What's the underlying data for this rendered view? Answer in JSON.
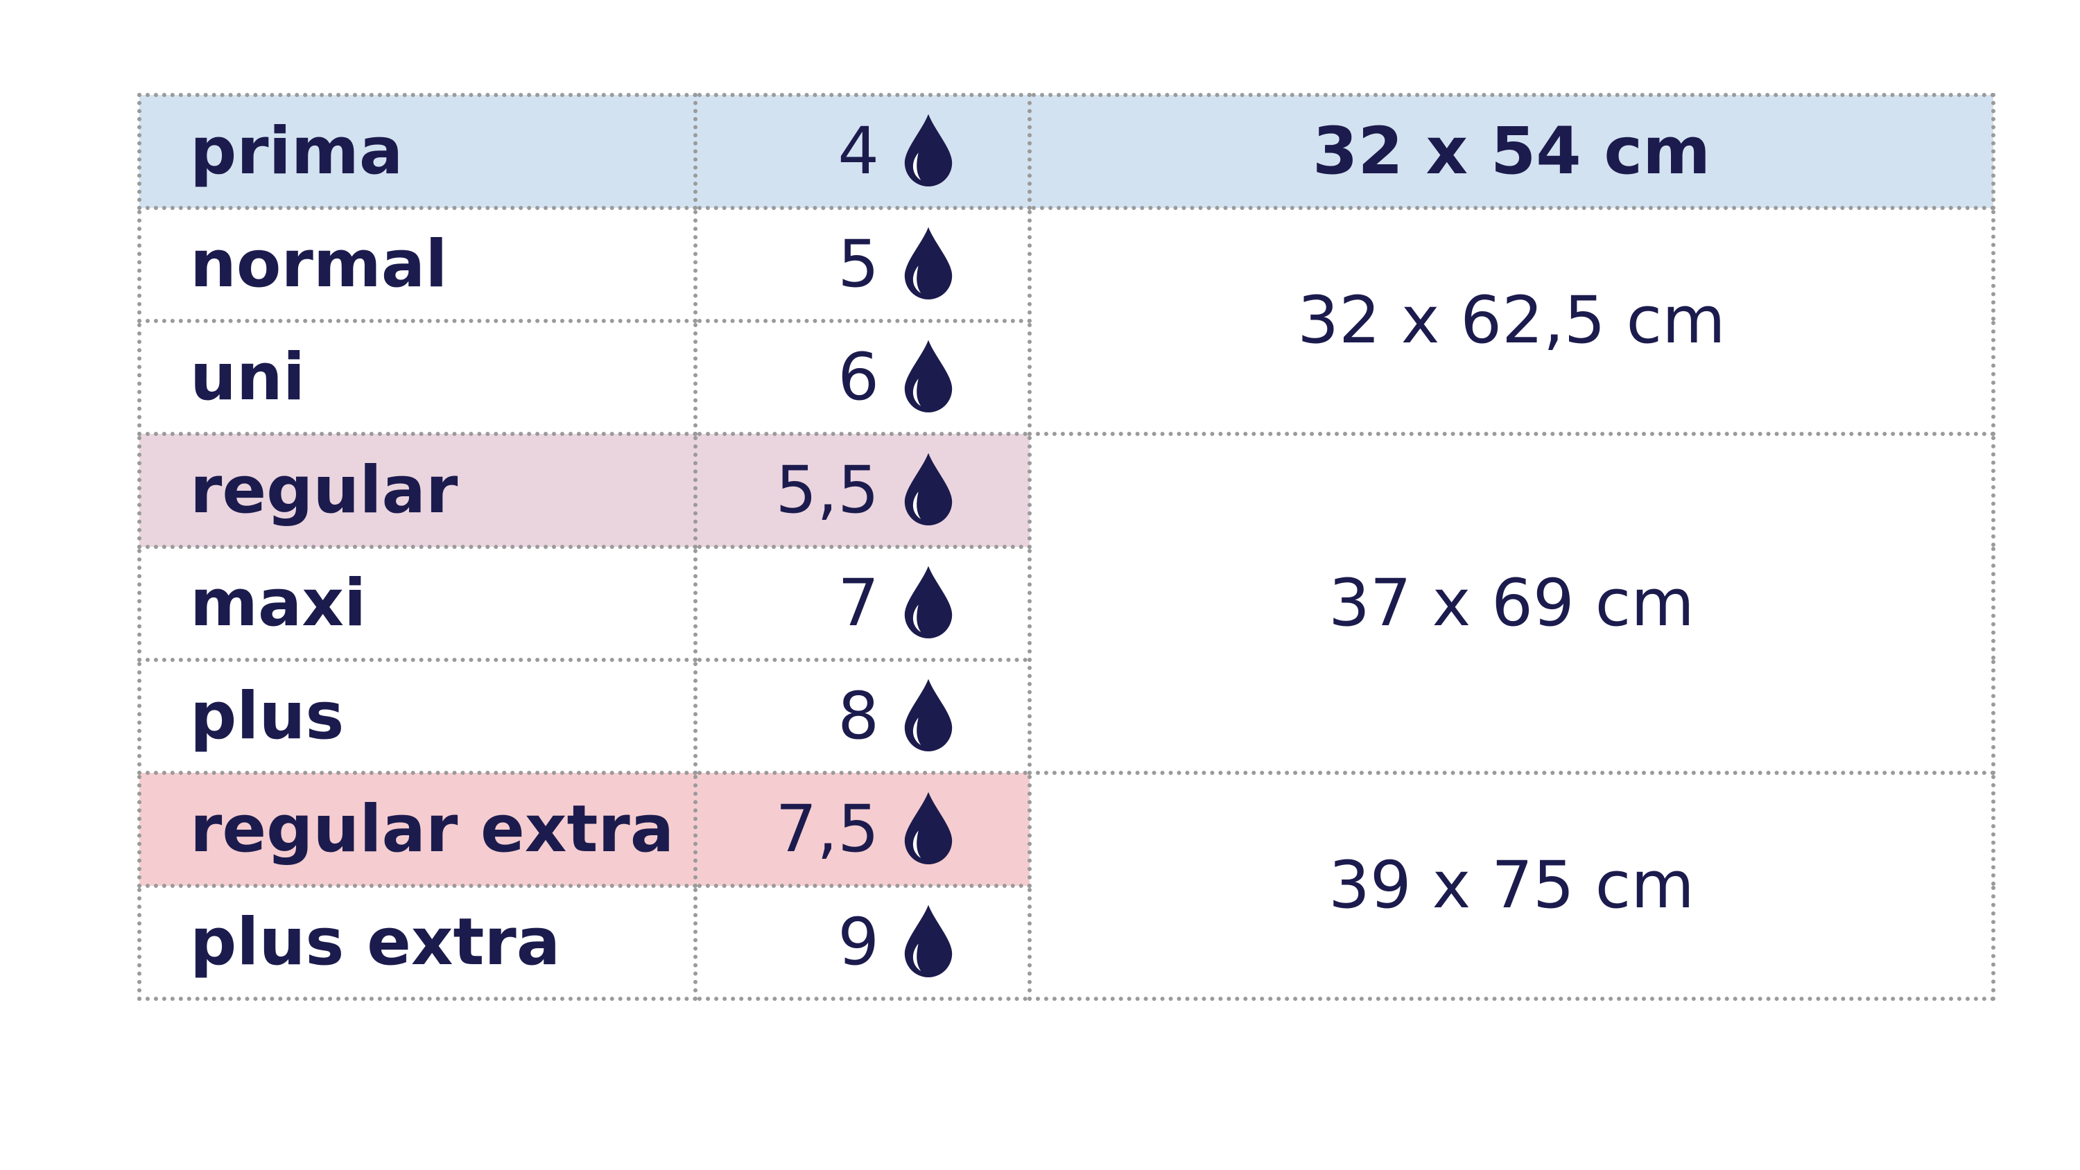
{
  "colors": {
    "text": "#1c1b4d",
    "row_prima_bg": "#d3e2f0",
    "row_regular_bg": "#ead5df",
    "row_regular_extra_bg": "#f5cdd0",
    "border": "#9a9a9a"
  },
  "table": {
    "rows": [
      {
        "name": "prima",
        "drops": "4",
        "icon": "drop-icon"
      },
      {
        "name": "normal",
        "drops": "5",
        "icon": "drop-icon"
      },
      {
        "name": "uni",
        "drops": "6",
        "icon": "drop-icon"
      },
      {
        "name": "regular",
        "drops": "5,5",
        "icon": "drop-icon"
      },
      {
        "name": "maxi",
        "drops": "7",
        "icon": "drop-icon"
      },
      {
        "name": "plus",
        "drops": "8",
        "icon": "drop-icon"
      },
      {
        "name": "regular extra",
        "drops": "7,5",
        "icon": "drop-icon"
      },
      {
        "name": "plus extra",
        "drops": "9",
        "icon": "drop-icon"
      }
    ],
    "sizes": [
      {
        "label": "32 x 54 cm",
        "rows": "prima"
      },
      {
        "label": "32 x 62,5 cm",
        "rows": "normal, uni"
      },
      {
        "label": "37 x 69 cm",
        "rows": "regular, maxi, plus"
      },
      {
        "label": "39 x 75 cm",
        "rows": "regular extra, plus extra"
      }
    ]
  }
}
